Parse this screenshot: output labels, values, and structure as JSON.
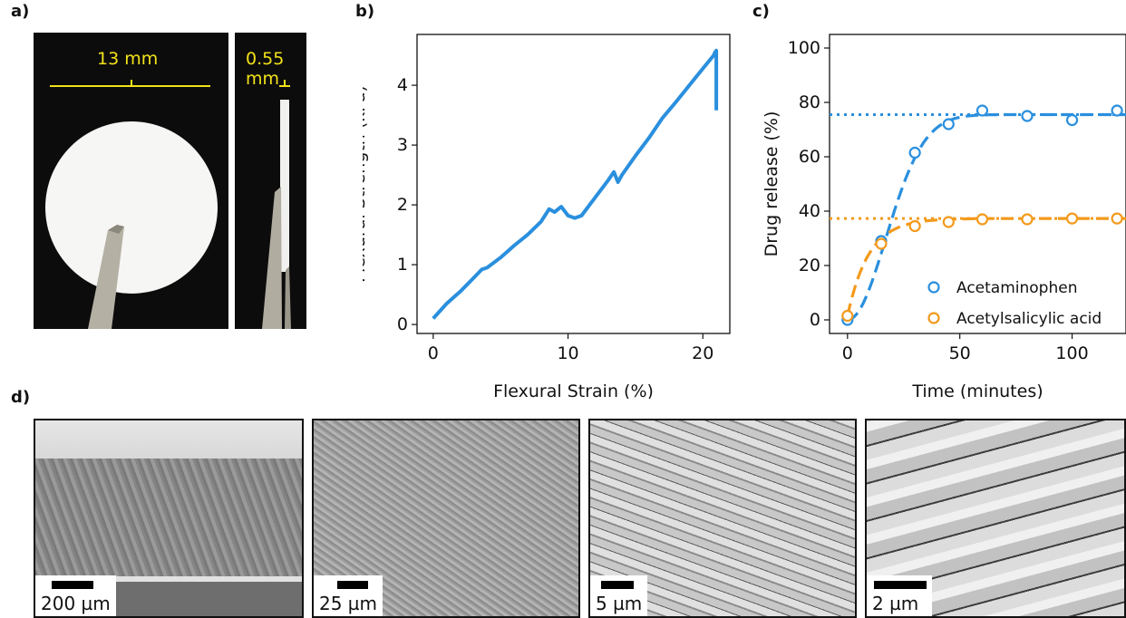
{
  "panels": {
    "a": {
      "letter": "a)",
      "disk_label": "13 mm",
      "thickness_label": "0.55 mm"
    },
    "b": {
      "letter": "b)"
    },
    "c": {
      "letter": "c)"
    },
    "d": {
      "letter": "d)",
      "scalebars": [
        "200 µm",
        "25 µm",
        "5 µm",
        "2 µm"
      ]
    }
  },
  "colors": {
    "blue": "#2a8fde",
    "orange": "#f39a1c",
    "annotation_yellow": "#f2e21a"
  },
  "chart_data": [
    {
      "type": "line",
      "panel": "b",
      "xlabel": "Flexural Strain (%)",
      "ylabel": "Flexural Strength (kPa)",
      "xlim": [
        -1.2,
        22
      ],
      "ylim": [
        -0.15,
        4.85
      ],
      "xticks": [
        0,
        10,
        20
      ],
      "yticks": [
        0,
        1,
        2,
        3,
        4
      ],
      "series": [
        {
          "color": "#2a8fde",
          "x": [
            0,
            1,
            2,
            3,
            3.6,
            4,
            5,
            6,
            7,
            8,
            8.6,
            9,
            9.5,
            10,
            10.5,
            11,
            12,
            13,
            13.4,
            13.7,
            14,
            15,
            16,
            17,
            18,
            19,
            20,
            20.8,
            20.9,
            21.0,
            21.0
          ],
          "y": [
            0.1,
            0.35,
            0.55,
            0.78,
            0.92,
            0.95,
            1.12,
            1.32,
            1.5,
            1.72,
            1.93,
            1.88,
            1.97,
            1.82,
            1.78,
            1.82,
            2.12,
            2.42,
            2.55,
            2.38,
            2.5,
            2.82,
            3.12,
            3.45,
            3.72,
            4.0,
            4.28,
            4.5,
            4.55,
            4.58,
            3.58
          ]
        }
      ]
    },
    {
      "type": "scatter",
      "panel": "c",
      "xlabel": "Time (minutes)",
      "ylabel": "Drug release (%)",
      "xlim": [
        -8,
        124
      ],
      "ylim": [
        -5,
        105
      ],
      "xticks": [
        0,
        50,
        100
      ],
      "yticks": [
        0,
        20,
        40,
        60,
        80,
        100
      ],
      "legend_position": "lower-right",
      "series": [
        {
          "name": "Acetaminophen",
          "color": "#2a8fde",
          "x": [
            0,
            15,
            30,
            45,
            60,
            80,
            100,
            120
          ],
          "y": [
            0,
            29,
            61.5,
            72,
            77,
            75,
            73.5,
            77
          ],
          "plateau": 75.5
        },
        {
          "name": "Acetylsalicylic acid",
          "color": "#f39a1c",
          "x": [
            0,
            15,
            30,
            45,
            60,
            80,
            100,
            120
          ],
          "y": [
            1.5,
            28,
            34.5,
            36,
            37,
            37,
            37.3,
            37.3
          ],
          "plateau": 37.3
        }
      ]
    }
  ]
}
